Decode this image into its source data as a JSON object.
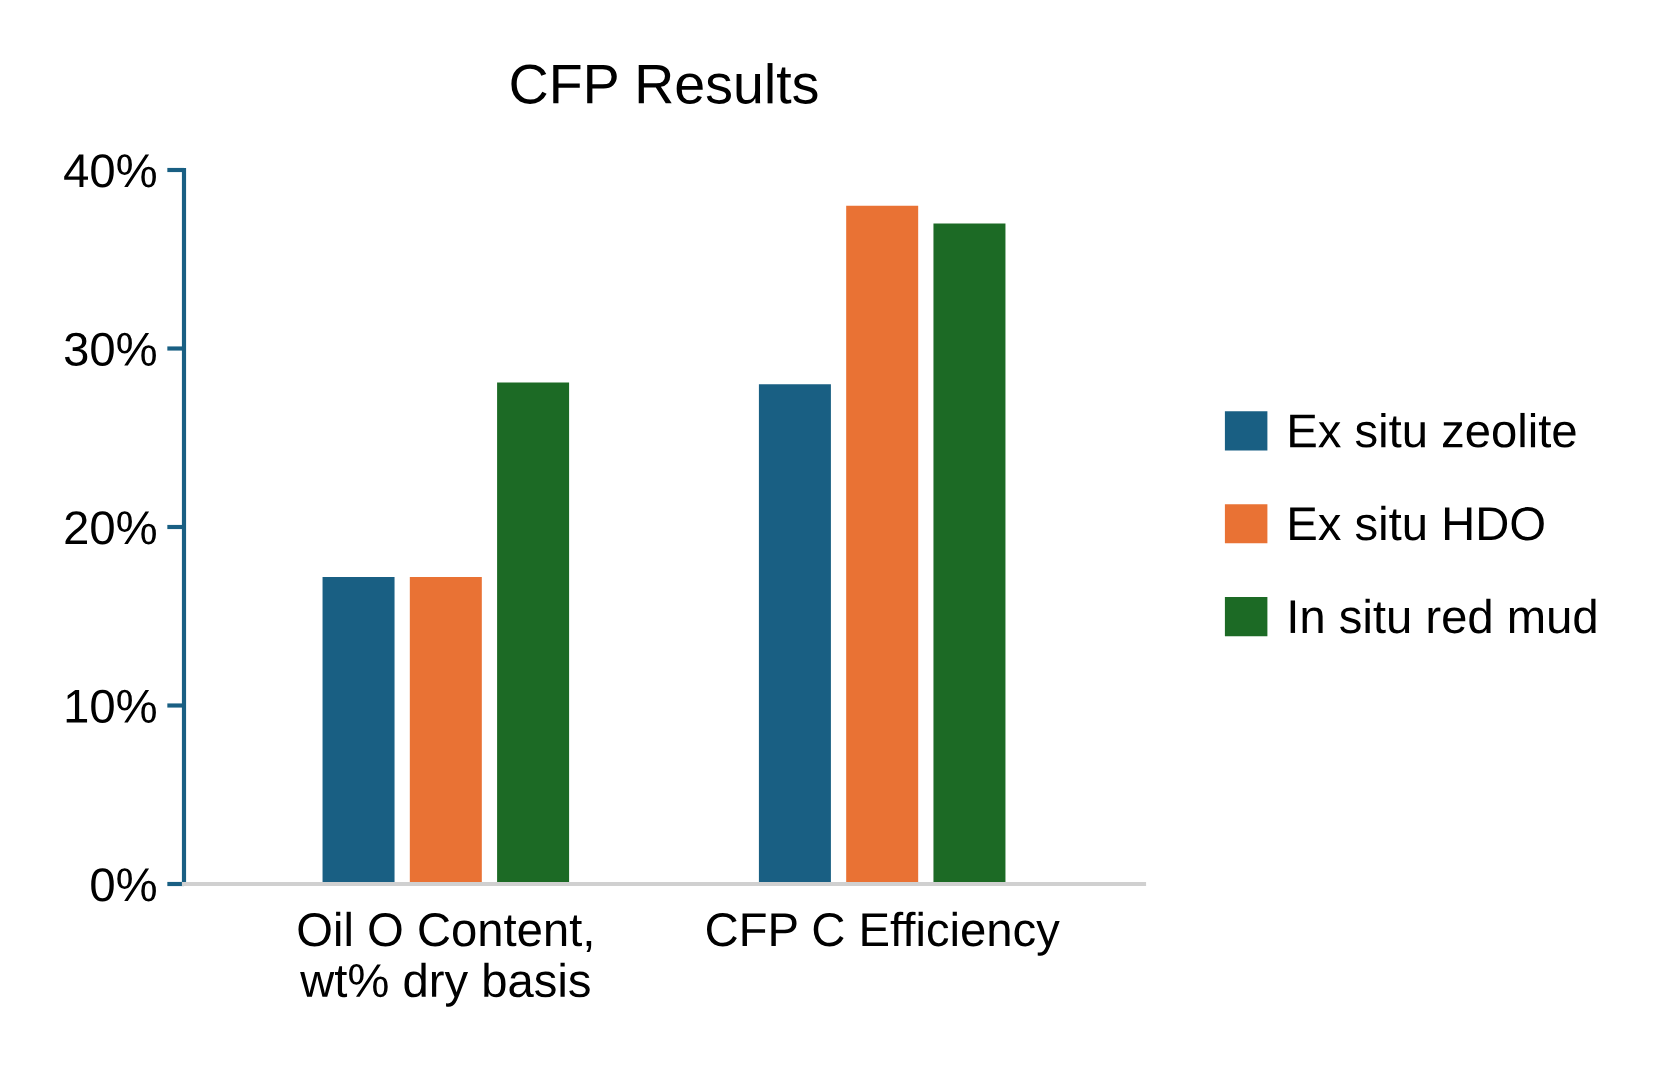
{
  "chart_data": {
    "type": "bar",
    "title": "CFP Results",
    "categories": [
      "Oil O Content,\nwt% dry basis",
      "CFP C Efficiency"
    ],
    "series": [
      {
        "name": "Ex situ zeolite",
        "color": "#195f83",
        "values": [
          17.2,
          28.0
        ]
      },
      {
        "name": "Ex situ HDO",
        "color": "#e97234",
        "values": [
          17.2,
          38.0
        ]
      },
      {
        "name": "In situ red mud",
        "color": "#1c6a25",
        "values": [
          28.1,
          37.0
        ]
      }
    ],
    "ylim": [
      0,
      40
    ],
    "yticks": [
      {
        "value": 0,
        "label": "0%"
      },
      {
        "value": 10,
        "label": "10%"
      },
      {
        "value": 20,
        "label": "20%"
      },
      {
        "value": 30,
        "label": "30%"
      },
      {
        "value": 40,
        "label": "40%"
      }
    ],
    "grid": false,
    "legend": "right"
  }
}
